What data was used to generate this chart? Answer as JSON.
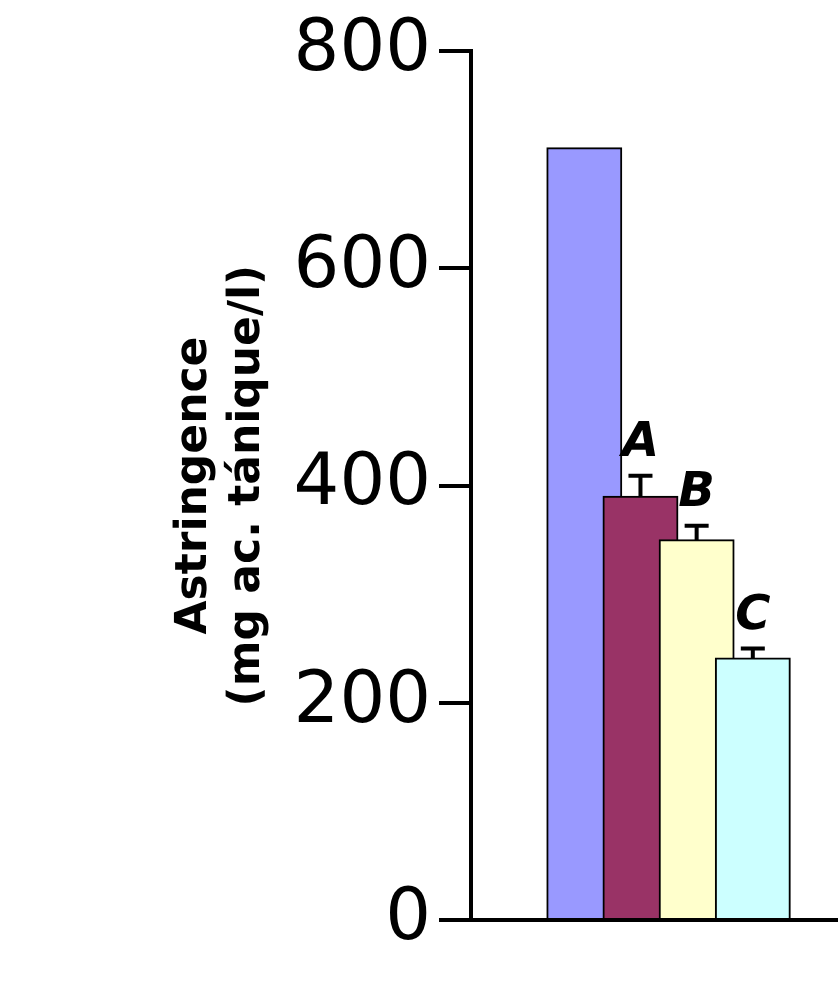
{
  "chart_data": {
    "type": "bar",
    "ylabel": "Astringence\n(mg ac. tánique/l)",
    "categories": [
      null,
      null,
      null,
      null
    ],
    "values": [
      711,
      390,
      350,
      241
    ],
    "colors": [
      "#9999ff",
      "#993366",
      "#ffffcc",
      "#ccffff"
    ],
    "errors": [
      null,
      [
        390,
        409
      ],
      [
        350,
        363
      ],
      [
        241,
        250
      ]
    ],
    "annotations": [
      {
        "text": "A",
        "y": 409
      },
      {
        "text": "B",
        "y": 363
      },
      {
        "text": "C",
        "y": 250
      }
    ],
    "ylim": [
      0,
      800
    ],
    "yticks": [
      0,
      200,
      400,
      600,
      800
    ],
    "grid": false,
    "legend": false
  }
}
